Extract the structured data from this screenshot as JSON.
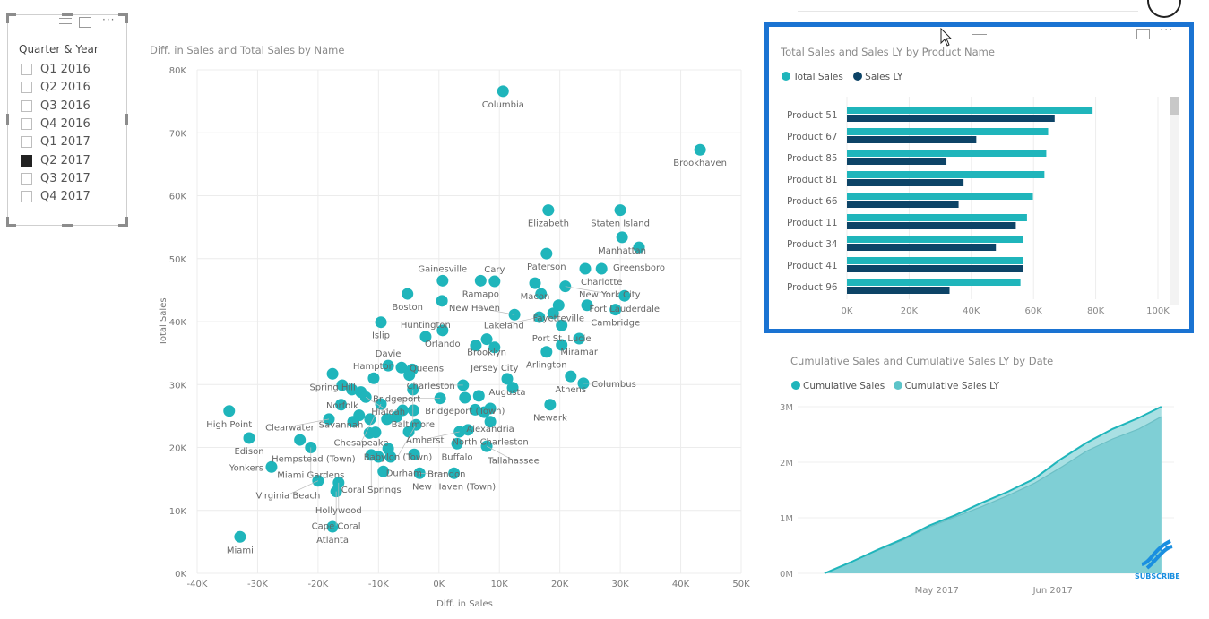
{
  "slicer": {
    "title": "Quarter & Year",
    "items": [
      {
        "label": "Q1 2016",
        "checked": false
      },
      {
        "label": "Q2 2016",
        "checked": false
      },
      {
        "label": "Q3 2016",
        "checked": false
      },
      {
        "label": "Q4 2016",
        "checked": false
      },
      {
        "label": "Q1 2017",
        "checked": false
      },
      {
        "label": "Q2 2017",
        "checked": true
      },
      {
        "label": "Q3 2017",
        "checked": false
      },
      {
        "label": "Q4 2017",
        "checked": false
      }
    ]
  },
  "colors": {
    "teal": "#1fb5bb",
    "navy": "#0d4467",
    "ly_area": "#7fcfd5",
    "focus_border": "#1a73d2",
    "subscribe": "#1a8fe0"
  },
  "subscribe_label": "SUBSCRIBE",
  "chart_data": [
    {
      "type": "scatter",
      "title": "Diff. in Sales and Total Sales by Name",
      "xlabel": "Diff. in Sales",
      "ylabel": "Total Sales",
      "xlim": [
        -40,
        50
      ],
      "ylim": [
        0,
        80
      ],
      "xticks": [
        "-40K",
        "-30K",
        "-20K",
        "-10K",
        "0K",
        "10K",
        "20K",
        "30K",
        "40K",
        "50K"
      ],
      "yticks": [
        "0K",
        "10K",
        "20K",
        "30K",
        "40K",
        "50K",
        "60K",
        "70K",
        "80K"
      ],
      "units": "K",
      "grid": true,
      "points": [
        {
          "name": "Columbia",
          "x": 10.6,
          "y": 76.6
        },
        {
          "name": "Brookhaven",
          "x": 43.2,
          "y": 67.3
        },
        {
          "name": "Staten Island",
          "x": 30.0,
          "y": 57.7
        },
        {
          "name": "Elizabeth",
          "x": 18.1,
          "y": 57.7
        },
        {
          "name": "Manhattan",
          "x": 30.3,
          "y": 53.4
        },
        {
          "name": "Greensboro",
          "x": 33.1,
          "y": 51.8
        },
        {
          "name": "Paterson",
          "x": 17.8,
          "y": 50.8
        },
        {
          "name": "Charlotte",
          "x": 26.9,
          "y": 48.4
        },
        {
          "name": "",
          "x": 24.2,
          "y": 48.4
        },
        {
          "name": "Ramapo",
          "x": 6.9,
          "y": 46.5
        },
        {
          "name": "Cary",
          "x": 9.2,
          "y": 46.4
        },
        {
          "name": "Gainesville",
          "x": 0.6,
          "y": 46.5
        },
        {
          "name": "Macon",
          "x": 15.9,
          "y": 46.1
        },
        {
          "name": "New York City",
          "x": 20.9,
          "y": 45.6
        },
        {
          "name": "",
          "x": 16.9,
          "y": 44.4
        },
        {
          "name": "Fort Lauderdale",
          "x": 30.7,
          "y": 44.1
        },
        {
          "name": "Cambridge",
          "x": 29.2,
          "y": 41.9
        },
        {
          "name": "Port St. Lucie",
          "x": 20.3,
          "y": 39.4
        },
        {
          "name": "Fayetteville",
          "x": 19.8,
          "y": 42.6
        },
        {
          "name": "Lakeland",
          "x": 16.6,
          "y": 40.7
        },
        {
          "name": "",
          "x": 18.9,
          "y": 41.3
        },
        {
          "name": "",
          "x": 24.5,
          "y": 42.6
        },
        {
          "name": "New Haven",
          "x": 12.5,
          "y": 41.1
        },
        {
          "name": "Boston",
          "x": -5.2,
          "y": 44.4
        },
        {
          "name": "",
          "x": 0.5,
          "y": 43.3
        },
        {
          "name": "Islip",
          "x": -9.6,
          "y": 39.9
        },
        {
          "name": "Orlando",
          "x": 0.6,
          "y": 38.6
        },
        {
          "name": "Huntington",
          "x": -2.2,
          "y": 37.6
        },
        {
          "name": "Brooklyn",
          "x": 7.9,
          "y": 37.2
        },
        {
          "name": "Jersey City",
          "x": 9.2,
          "y": 35.9
        },
        {
          "name": "",
          "x": 6.1,
          "y": 36.2
        },
        {
          "name": "Arlington",
          "x": 17.8,
          "y": 35.2
        },
        {
          "name": "",
          "x": 20.3,
          "y": 36.3
        },
        {
          "name": "Miramar",
          "x": 23.2,
          "y": 37.3
        },
        {
          "name": "Athens",
          "x": 21.8,
          "y": 31.3
        },
        {
          "name": "Columbus",
          "x": 23.9,
          "y": 30.2
        },
        {
          "name": "Newark",
          "x": 18.4,
          "y": 26.8
        },
        {
          "name": "Augusta",
          "x": 11.3,
          "y": 30.9
        },
        {
          "name": "",
          "x": 12.2,
          "y": 29.5
        },
        {
          "name": "Charleston",
          "x": 4.0,
          "y": 29.9
        },
        {
          "name": "Bridgeport (Town)",
          "x": 4.3,
          "y": 27.9
        },
        {
          "name": "",
          "x": 6.6,
          "y": 28.2
        },
        {
          "name": "Bridgeport",
          "x": 0.2,
          "y": 27.8
        },
        {
          "name": "Alexandria",
          "x": 8.5,
          "y": 26.2
        },
        {
          "name": "",
          "x": 6.0,
          "y": 26.0
        },
        {
          "name": "",
          "x": 7.5,
          "y": 25.6
        },
        {
          "name": "North Charleston",
          "x": 8.5,
          "y": 24.1
        },
        {
          "name": "Amherst",
          "x": 3.4,
          "y": 22.5
        },
        {
          "name": "",
          "x": 4.8,
          "y": 22.8
        },
        {
          "name": "Buffalo",
          "x": 3.0,
          "y": 20.6
        },
        {
          "name": "Tallahassee",
          "x": 7.9,
          "y": 20.2
        },
        {
          "name": "New Haven (Town)",
          "x": 2.5,
          "y": 15.9
        },
        {
          "name": "Spring Hill",
          "x": -17.6,
          "y": 31.7
        },
        {
          "name": "Hampton",
          "x": -10.8,
          "y": 31.0
        },
        {
          "name": "Davie",
          "x": -8.4,
          "y": 33.0
        },
        {
          "name": "Queens",
          "x": -6.2,
          "y": 32.7
        },
        {
          "name": "",
          "x": -4.4,
          "y": 32.4
        },
        {
          "name": "",
          "x": -4.9,
          "y": 31.5
        },
        {
          "name": "Norfolk",
          "x": -16.0,
          "y": 29.9
        },
        {
          "name": "",
          "x": -14.4,
          "y": 29.2
        },
        {
          "name": "",
          "x": -12.9,
          "y": 28.8
        },
        {
          "name": "Hialeah",
          "x": -12.1,
          "y": 28.0
        },
        {
          "name": "Baltimore",
          "x": -4.3,
          "y": 29.2
        },
        {
          "name": "Savannah",
          "x": -16.2,
          "y": 26.8
        },
        {
          "name": "Chesapeake",
          "x": -9.6,
          "y": 26.9
        },
        {
          "name": "High Point",
          "x": -34.7,
          "y": 25.8
        },
        {
          "name": "Clearwater",
          "x": -18.2,
          "y": 24.5
        },
        {
          "name": "",
          "x": -14.2,
          "y": 24.1
        },
        {
          "name": "",
          "x": -13.2,
          "y": 25.1
        },
        {
          "name": "",
          "x": -11.4,
          "y": 24.5
        },
        {
          "name": "",
          "x": -8.6,
          "y": 24.5
        },
        {
          "name": "",
          "x": -7.0,
          "y": 24.9
        },
        {
          "name": "",
          "x": -6.0,
          "y": 25.9
        },
        {
          "name": "",
          "x": -4.2,
          "y": 25.9
        },
        {
          "name": "Babylon (Town)",
          "x": -3.8,
          "y": 23.6
        },
        {
          "name": "",
          "x": -5.0,
          "y": 22.5
        },
        {
          "name": "",
          "x": -11.5,
          "y": 22.3
        },
        {
          "name": "",
          "x": -10.5,
          "y": 22.4
        },
        {
          "name": "Edison",
          "x": -31.4,
          "y": 21.5
        },
        {
          "name": "Hempstead (Town)",
          "x": -23.0,
          "y": 21.2
        },
        {
          "name": "Miami Gardens",
          "x": -21.2,
          "y": 20.0
        },
        {
          "name": "",
          "x": -8.4,
          "y": 19.8
        },
        {
          "name": "Durham",
          "x": -4.1,
          "y": 18.9
        },
        {
          "name": "Coral Springs",
          "x": -11.2,
          "y": 18.8
        },
        {
          "name": "",
          "x": -10.0,
          "y": 18.5
        },
        {
          "name": "",
          "x": -8.0,
          "y": 18.5
        },
        {
          "name": "",
          "x": -9.2,
          "y": 16.2
        },
        {
          "name": "Brandon",
          "x": -3.2,
          "y": 15.9
        },
        {
          "name": "Yonkers",
          "x": -27.7,
          "y": 16.9
        },
        {
          "name": "Virginia Beach",
          "x": -20.0,
          "y": 14.7
        },
        {
          "name": "Hollywood",
          "x": -16.6,
          "y": 14.4
        },
        {
          "name": "Cape Coral",
          "x": -17.0,
          "y": 13.0
        },
        {
          "name": "Atlanta",
          "x": -17.6,
          "y": 7.4
        },
        {
          "name": "Miami",
          "x": -32.9,
          "y": 5.8
        }
      ]
    },
    {
      "type": "bar",
      "orientation": "horizontal",
      "title": "Total Sales and Sales LY by Product Name",
      "categories": [
        "Product 51",
        "Product 67",
        "Product 85",
        "Product 81",
        "Product 66",
        "Product 11",
        "Product 34",
        "Product 41",
        "Product 96"
      ],
      "series": [
        {
          "name": "Total Sales",
          "values": [
            79.0,
            64.7,
            64.1,
            63.5,
            59.8,
            57.9,
            56.6,
            56.5,
            55.8
          ]
        },
        {
          "name": "Sales LY",
          "values": [
            66.8,
            41.6,
            32.0,
            37.5,
            35.9,
            54.3,
            47.9,
            56.5,
            33.0
          ]
        }
      ],
      "units": "K",
      "xlim": [
        0,
        100
      ],
      "xticks": [
        "0K",
        "20K",
        "40K",
        "60K",
        "80K",
        "100K"
      ],
      "legend": "top-left",
      "grid": true
    },
    {
      "type": "area",
      "title": "Cumulative Sales and Cumulative Sales LY by Date",
      "x": [
        "2017-04-01",
        "2017-04-08",
        "2017-04-15",
        "2017-04-22",
        "2017-04-29",
        "2017-05-06",
        "2017-05-13",
        "2017-05-20",
        "2017-05-27",
        "2017-06-03",
        "2017-06-10",
        "2017-06-17",
        "2017-06-24",
        "2017-06-30"
      ],
      "series": [
        {
          "name": "Cumulative Sales",
          "values": [
            0,
            0.2,
            0.42,
            0.62,
            0.86,
            1.05,
            1.27,
            1.47,
            1.7,
            2.05,
            2.35,
            2.6,
            2.8,
            3.0
          ]
        },
        {
          "name": "Cumulative Sales LY",
          "values": [
            0,
            0.2,
            0.41,
            0.6,
            0.83,
            1.02,
            1.2,
            1.4,
            1.62,
            1.9,
            2.2,
            2.42,
            2.6,
            2.82
          ]
        }
      ],
      "units": "M",
      "ylim": [
        0,
        3
      ],
      "yticks": [
        "0M",
        "1M",
        "2M",
        "3M"
      ],
      "xticks": [
        "May 2017",
        "Jun 2017"
      ],
      "legend": "top-left",
      "grid": true
    }
  ]
}
